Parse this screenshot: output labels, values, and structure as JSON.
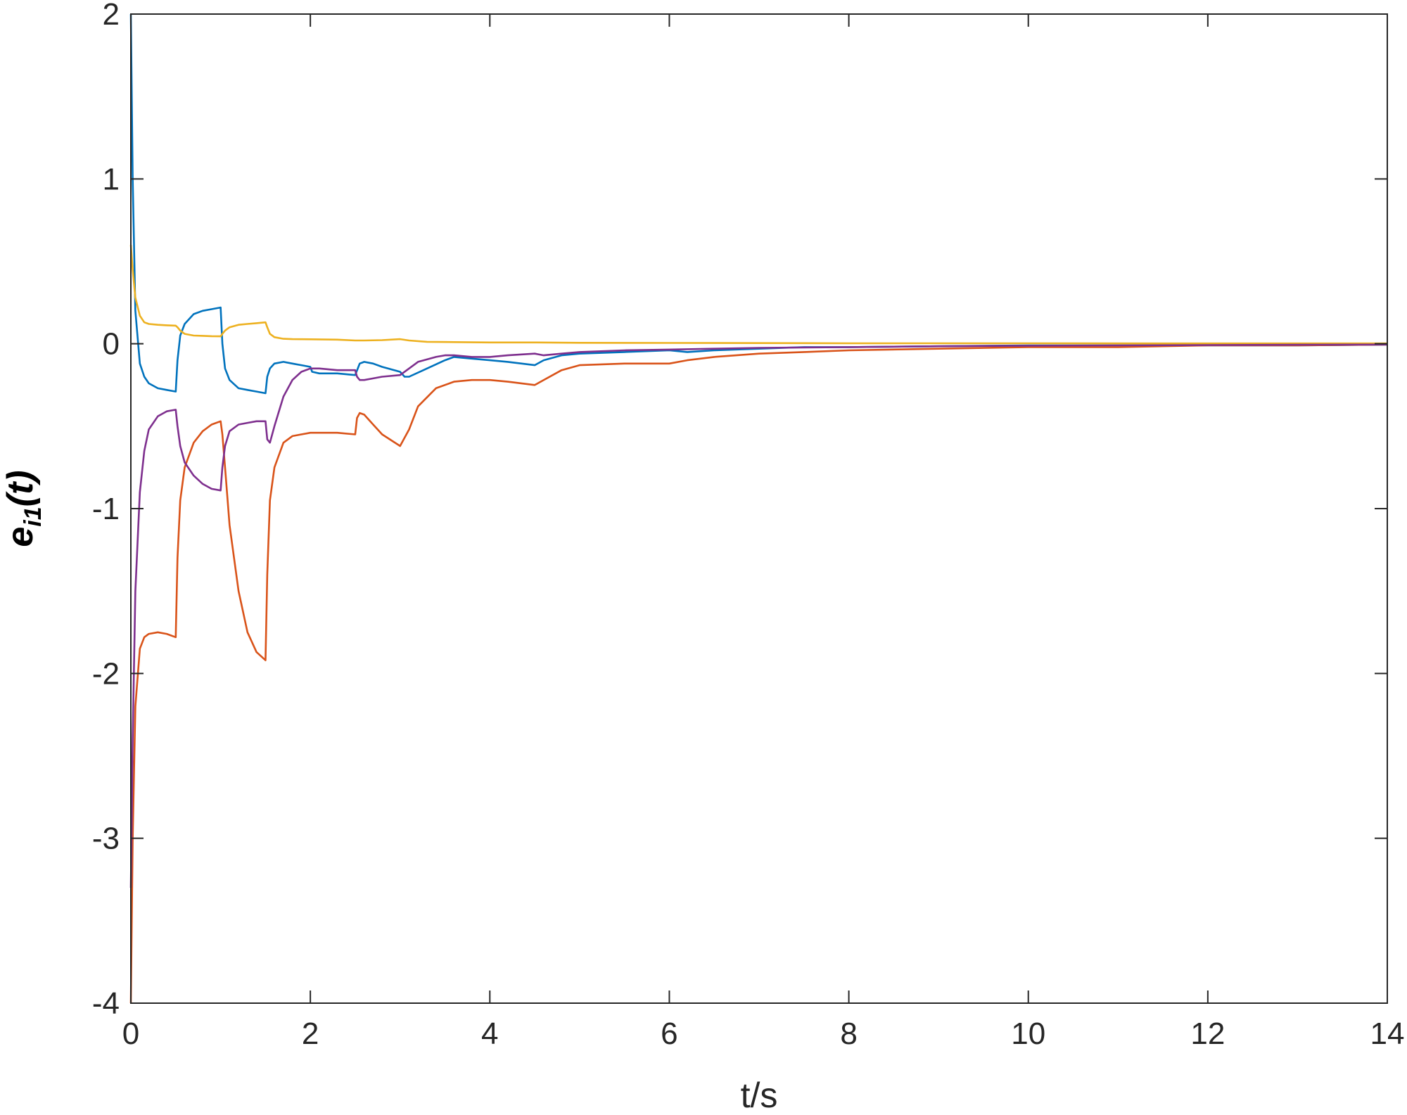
{
  "chart_data": {
    "type": "line",
    "xlabel": "t/s",
    "ylabel": {
      "base": "e",
      "sub": "i1",
      "arg": "(t)"
    },
    "xlim": [
      0,
      14
    ],
    "ylim": [
      -4,
      2
    ],
    "xticks": [
      0,
      2,
      4,
      6,
      8,
      10,
      12,
      14
    ],
    "yticks": [
      -4,
      -3,
      -2,
      -1,
      0,
      1,
      2
    ],
    "xtick_labels": [
      "0",
      "2",
      "4",
      "6",
      "8",
      "10",
      "12",
      "14"
    ],
    "ytick_labels": [
      "-4",
      "-3",
      "-2",
      "-1",
      "0",
      "1",
      "2"
    ],
    "grid": false,
    "legend": null,
    "series": [
      {
        "color": "#0072BD",
        "x": [
          0,
          0.02,
          0.05,
          0.1,
          0.15,
          0.2,
          0.3,
          0.4,
          0.5,
          0.52,
          0.55,
          0.6,
          0.7,
          0.8,
          0.9,
          1.0,
          1.02,
          1.05,
          1.1,
          1.2,
          1.3,
          1.4,
          1.5,
          1.52,
          1.55,
          1.6,
          1.7,
          1.8,
          1.9,
          2.0,
          2.02,
          2.1,
          2.3,
          2.5,
          2.55,
          2.6,
          2.7,
          2.8,
          3.0,
          3.05,
          3.1,
          3.3,
          3.5,
          3.6,
          3.8,
          4.0,
          4.2,
          4.5,
          4.6,
          4.8,
          5.0,
          5.5,
          6.0,
          6.2,
          6.5,
          7.0,
          7.5,
          8.0,
          9.0,
          10,
          11,
          12,
          13,
          14
        ],
        "y": [
          2.0,
          1.0,
          0.2,
          -0.12,
          -0.2,
          -0.24,
          -0.27,
          -0.28,
          -0.29,
          -0.1,
          0.05,
          0.12,
          0.18,
          0.2,
          0.21,
          0.22,
          0.0,
          -0.15,
          -0.22,
          -0.27,
          -0.28,
          -0.29,
          -0.3,
          -0.2,
          -0.15,
          -0.12,
          -0.11,
          -0.12,
          -0.13,
          -0.14,
          -0.17,
          -0.18,
          -0.18,
          -0.19,
          -0.12,
          -0.11,
          -0.12,
          -0.14,
          -0.17,
          -0.2,
          -0.2,
          -0.15,
          -0.1,
          -0.08,
          -0.09,
          -0.1,
          -0.11,
          -0.13,
          -0.1,
          -0.07,
          -0.06,
          -0.05,
          -0.04,
          -0.05,
          -0.04,
          -0.03,
          -0.02,
          -0.02,
          -0.015,
          -0.01,
          -0.01,
          -0.01,
          -0.01,
          -0.005
        ]
      },
      {
        "color": "#D95319",
        "x": [
          0,
          0.02,
          0.05,
          0.1,
          0.15,
          0.2,
          0.3,
          0.4,
          0.5,
          0.52,
          0.55,
          0.6,
          0.7,
          0.8,
          0.9,
          1.0,
          1.02,
          1.05,
          1.1,
          1.2,
          1.3,
          1.4,
          1.5,
          1.52,
          1.55,
          1.6,
          1.7,
          1.8,
          1.9,
          2.0,
          2.1,
          2.3,
          2.5,
          2.52,
          2.55,
          2.6,
          2.7,
          2.8,
          3.0,
          3.1,
          3.2,
          3.4,
          3.6,
          3.8,
          4.0,
          4.2,
          4.5,
          4.6,
          4.8,
          5.0,
          5.5,
          6.0,
          6.2,
          6.5,
          7.0,
          7.5,
          8.0,
          9.0,
          10,
          11,
          12,
          13,
          14
        ],
        "y": [
          -4.0,
          -3.0,
          -2.2,
          -1.85,
          -1.78,
          -1.76,
          -1.75,
          -1.76,
          -1.78,
          -1.3,
          -0.95,
          -0.75,
          -0.6,
          -0.53,
          -0.49,
          -0.47,
          -0.55,
          -0.75,
          -1.1,
          -1.5,
          -1.75,
          -1.87,
          -1.92,
          -1.4,
          -0.95,
          -0.75,
          -0.6,
          -0.56,
          -0.55,
          -0.54,
          -0.54,
          -0.54,
          -0.55,
          -0.45,
          -0.42,
          -0.43,
          -0.49,
          -0.55,
          -0.62,
          -0.52,
          -0.38,
          -0.27,
          -0.23,
          -0.22,
          -0.22,
          -0.23,
          -0.25,
          -0.22,
          -0.16,
          -0.13,
          -0.12,
          -0.12,
          -0.1,
          -0.08,
          -0.06,
          -0.05,
          -0.04,
          -0.03,
          -0.02,
          -0.02,
          -0.01,
          -0.01,
          -0.005
        ]
      },
      {
        "color": "#EDB120",
        "x": [
          0,
          0.02,
          0.05,
          0.1,
          0.15,
          0.2,
          0.3,
          0.4,
          0.5,
          0.52,
          0.55,
          0.6,
          0.7,
          0.8,
          0.9,
          1.0,
          1.02,
          1.05,
          1.1,
          1.2,
          1.3,
          1.4,
          1.5,
          1.52,
          1.55,
          1.6,
          1.7,
          1.8,
          2.0,
          2.3,
          2.5,
          2.6,
          2.8,
          3.0,
          3.1,
          3.3,
          3.6,
          4.0,
          4.5,
          5.0,
          6.0,
          7.0,
          8.0,
          10,
          12,
          14
        ],
        "y": [
          0.6,
          0.45,
          0.28,
          0.17,
          0.13,
          0.12,
          0.115,
          0.112,
          0.11,
          0.1,
          0.08,
          0.06,
          0.05,
          0.048,
          0.046,
          0.045,
          0.06,
          0.08,
          0.1,
          0.115,
          0.12,
          0.125,
          0.13,
          0.1,
          0.06,
          0.04,
          0.03,
          0.028,
          0.027,
          0.025,
          0.02,
          0.02,
          0.022,
          0.028,
          0.02,
          0.012,
          0.01,
          0.008,
          0.008,
          0.006,
          0.005,
          0.004,
          0.003,
          0.003,
          0.002,
          0.002
        ]
      },
      {
        "color": "#7E2F8E",
        "x": [
          0,
          0.02,
          0.05,
          0.1,
          0.15,
          0.2,
          0.3,
          0.4,
          0.5,
          0.52,
          0.55,
          0.6,
          0.7,
          0.8,
          0.9,
          1.0,
          1.02,
          1.05,
          1.1,
          1.2,
          1.3,
          1.4,
          1.5,
          1.52,
          1.55,
          1.6,
          1.7,
          1.8,
          1.9,
          2.0,
          2.02,
          2.1,
          2.3,
          2.5,
          2.52,
          2.55,
          2.6,
          2.7,
          2.8,
          3.0,
          3.1,
          3.2,
          3.4,
          3.5,
          3.6,
          3.8,
          4.0,
          4.2,
          4.5,
          4.6,
          4.8,
          5.0,
          5.5,
          6.0,
          6.5,
          7.0,
          8.0,
          9.0,
          10,
          11,
          12,
          13,
          14
        ],
        "y": [
          -3.3,
          -2.4,
          -1.5,
          -0.9,
          -0.65,
          -0.52,
          -0.44,
          -0.41,
          -0.4,
          -0.5,
          -0.62,
          -0.72,
          -0.8,
          -0.85,
          -0.88,
          -0.89,
          -0.75,
          -0.62,
          -0.53,
          -0.49,
          -0.48,
          -0.47,
          -0.47,
          -0.58,
          -0.6,
          -0.5,
          -0.32,
          -0.22,
          -0.17,
          -0.15,
          -0.15,
          -0.15,
          -0.16,
          -0.16,
          -0.2,
          -0.22,
          -0.22,
          -0.21,
          -0.2,
          -0.19,
          -0.15,
          -0.11,
          -0.08,
          -0.07,
          -0.07,
          -0.08,
          -0.08,
          -0.07,
          -0.06,
          -0.07,
          -0.06,
          -0.05,
          -0.04,
          -0.035,
          -0.03,
          -0.025,
          -0.02,
          -0.015,
          -0.012,
          -0.01,
          -0.008,
          -0.006,
          -0.005
        ]
      }
    ]
  }
}
